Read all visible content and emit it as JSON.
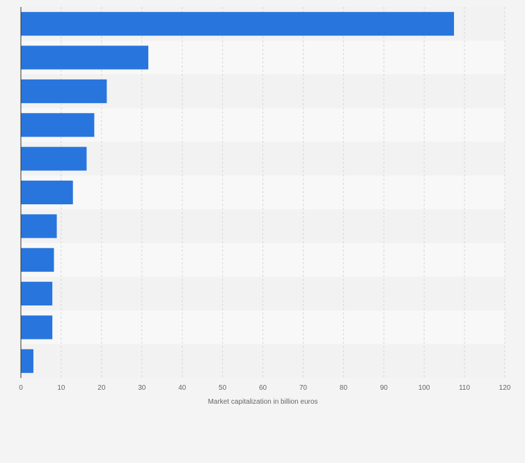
{
  "chart_data": {
    "type": "bar",
    "orientation": "horizontal",
    "title": "",
    "xlabel": "Market capitalization in billion euros",
    "ylabel": "",
    "categories": [
      "",
      "",
      "",
      "",
      "",
      "",
      "",
      "",
      "",
      "",
      ""
    ],
    "values": [
      107.4,
      31.6,
      21.3,
      18.2,
      16.3,
      12.9,
      8.9,
      8.2,
      7.8,
      7.8,
      3.1
    ],
    "xlim": [
      0,
      120
    ],
    "x_ticks": [
      0,
      10,
      20,
      30,
      40,
      50,
      60,
      70,
      80,
      90,
      100,
      110,
      120
    ],
    "grid": true,
    "legend": "none",
    "colors": {
      "bar": "#2876dd",
      "band_dark": "#f2f2f2",
      "band_light": "#f8f8f8",
      "grid": "#d6d6d6",
      "axis": "#333333"
    }
  }
}
